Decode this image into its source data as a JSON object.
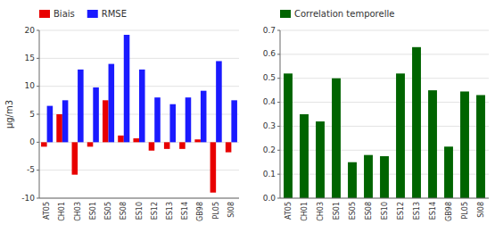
{
  "chart_data": [
    {
      "type": "bar",
      "categories": [
        "AT05",
        "CH01",
        "CH03",
        "ES01",
        "ES05",
        "ES08",
        "ES10",
        "ES12",
        "ES13",
        "ES14",
        "GB98",
        "PL05",
        "SI08"
      ],
      "series": [
        {
          "name": "Biais",
          "color": "#e80000",
          "values": [
            -0.8,
            5.0,
            -5.8,
            -0.8,
            7.5,
            1.2,
            0.7,
            -1.5,
            -1.2,
            -1.2,
            0.5,
            -9.0,
            -1.8
          ]
        },
        {
          "name": "RMSE",
          "color": "#1a1aff",
          "values": [
            6.5,
            7.5,
            13.0,
            9.8,
            14.0,
            19.2,
            13.0,
            8.0,
            6.8,
            8.0,
            9.2,
            14.5,
            7.5
          ]
        }
      ],
      "y_label": "μg/m3",
      "ylim": [
        -10,
        20
      ],
      "yticks": [
        -10,
        -5,
        0,
        5,
        10,
        15,
        20
      ],
      "grid": true,
      "legend": "top"
    },
    {
      "type": "bar",
      "categories": [
        "AT05",
        "CH01",
        "CH03",
        "ES01",
        "ES05",
        "ES08",
        "ES10",
        "ES12",
        "ES13",
        "ES14",
        "GB98",
        "PL05",
        "SI08"
      ],
      "series": [
        {
          "name": "Correlation temporelle",
          "color": "#006400",
          "values": [
            0.52,
            0.35,
            0.32,
            0.5,
            0.15,
            0.18,
            0.175,
            0.52,
            0.63,
            0.45,
            0.215,
            0.445,
            0.43
          ]
        }
      ],
      "ylim": [
        0,
        0.7
      ],
      "yticks": [
        {
          "value": 0.0,
          "label": "0.0"
        },
        0.1,
        0.2,
        0.3,
        0.4,
        0.5,
        0.6,
        0.7
      ],
      "grid": true,
      "legend": "top"
    }
  ]
}
